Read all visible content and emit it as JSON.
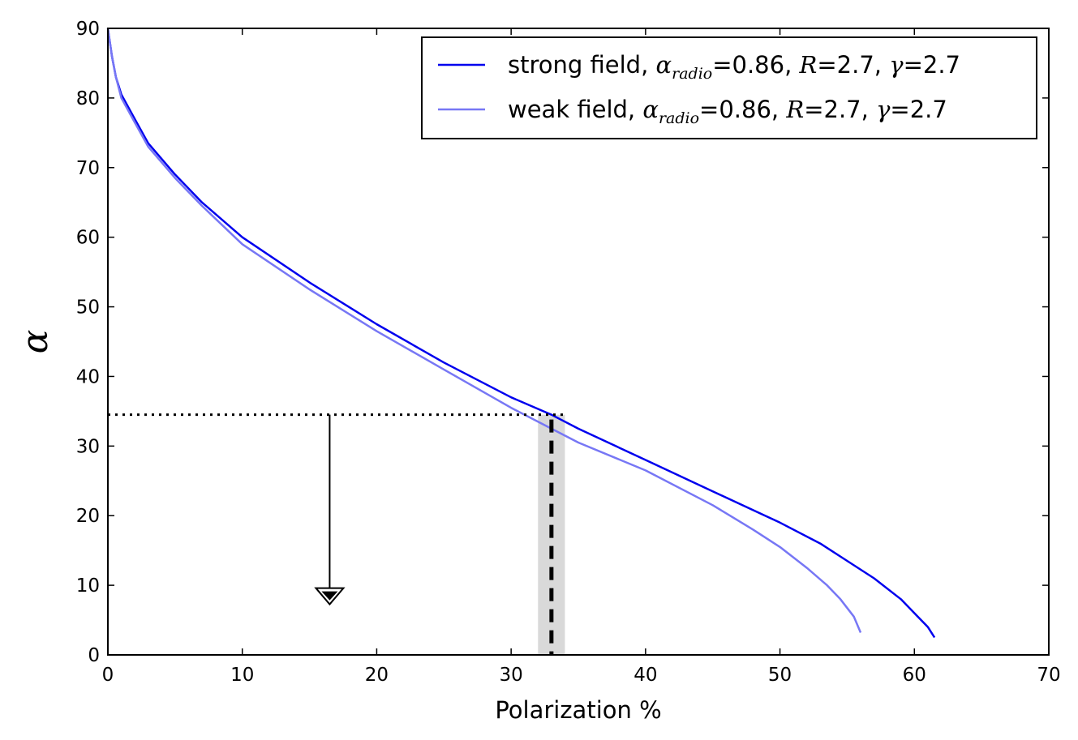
{
  "chart_data": {
    "type": "line",
    "title": "",
    "xlabel": "Polarization %",
    "ylabel": "α",
    "xlim": [
      0,
      70
    ],
    "ylim": [
      0,
      90
    ],
    "grid": false,
    "x_ticks": [
      0,
      10,
      20,
      30,
      40,
      50,
      60,
      70
    ],
    "y_ticks": [
      0,
      10,
      20,
      30,
      40,
      50,
      60,
      70,
      80,
      90
    ],
    "series": [
      {
        "name": "strong field",
        "legend_prefix": "strong field, ",
        "alpha_label": "α",
        "alpha_sub": "radio",
        "alpha_value": "=0.86, ",
        "r_label": "R",
        "r_value": "=2.7, ",
        "gamma_label": "γ",
        "gamma_value": "=2.7",
        "color": "#0000ee",
        "opacity": 1.0,
        "points": [
          [
            0,
            90
          ],
          [
            0.3,
            86
          ],
          [
            0.6,
            83
          ],
          [
            1,
            80.5
          ],
          [
            2,
            77
          ],
          [
            3,
            73.5
          ],
          [
            5,
            69
          ],
          [
            7,
            65
          ],
          [
            10,
            60
          ],
          [
            15,
            53.5
          ],
          [
            20,
            47.5
          ],
          [
            25,
            42
          ],
          [
            30,
            37
          ],
          [
            33,
            34.5
          ],
          [
            35,
            32.5
          ],
          [
            40,
            28
          ],
          [
            45,
            23.5
          ],
          [
            50,
            19
          ],
          [
            53,
            16
          ],
          [
            55,
            13.5
          ],
          [
            57,
            11
          ],
          [
            59,
            8
          ],
          [
            60,
            6
          ],
          [
            61,
            4
          ],
          [
            61.5,
            2.5
          ]
        ]
      },
      {
        "name": "weak field",
        "legend_prefix": "weak field, ",
        "alpha_label": "α",
        "alpha_sub": "radio",
        "alpha_value": "=0.86, ",
        "r_label": "R",
        "r_value": "=2.7, ",
        "gamma_label": "γ",
        "gamma_value": "=2.7",
        "color": "#7777f5",
        "opacity": 1.0,
        "points": [
          [
            0,
            90
          ],
          [
            0.3,
            86
          ],
          [
            0.6,
            83
          ],
          [
            1,
            80
          ],
          [
            2,
            76.5
          ],
          [
            3,
            73
          ],
          [
            5,
            68.5
          ],
          [
            7,
            64.5
          ],
          [
            10,
            59
          ],
          [
            15,
            52.5
          ],
          [
            20,
            46.5
          ],
          [
            25,
            41
          ],
          [
            30,
            35.5
          ],
          [
            33,
            32.5
          ],
          [
            35,
            30.5
          ],
          [
            40,
            26.5
          ],
          [
            45,
            21.5
          ],
          [
            48,
            18
          ],
          [
            50,
            15.5
          ],
          [
            52,
            12.5
          ],
          [
            53.5,
            10
          ],
          [
            54.5,
            8
          ],
          [
            55.5,
            5.5
          ],
          [
            56,
            3.2
          ]
        ]
      }
    ],
    "annotations": {
      "upper_limit_y": 34.5,
      "upper_limit_arrow_x": 16.5,
      "upper_limit_arrow_to_y": 7.5,
      "measured_polarization": 33,
      "polarization_band": [
        32,
        34
      ],
      "band_color": "#d9d9d9"
    },
    "legend_position": "top-right"
  }
}
